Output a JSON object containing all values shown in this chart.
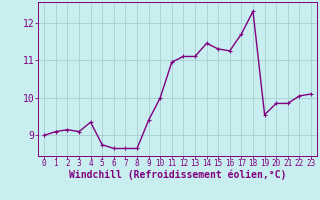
{
  "x": [
    0,
    1,
    2,
    3,
    4,
    5,
    6,
    7,
    8,
    9,
    10,
    11,
    12,
    13,
    14,
    15,
    16,
    17,
    18,
    19,
    20,
    21,
    22,
    23
  ],
  "y": [
    9.0,
    9.1,
    9.15,
    9.1,
    9.35,
    8.75,
    8.65,
    8.65,
    8.65,
    9.4,
    10.0,
    10.95,
    11.1,
    11.1,
    11.45,
    11.3,
    11.25,
    11.7,
    12.3,
    9.55,
    9.85,
    9.85,
    10.05,
    10.1
  ],
  "line_color": "#800080",
  "marker": "o",
  "marker_size": 2.0,
  "bg_color": "#c8eef0",
  "grid_color": "#a0c8cc",
  "xlabel": "Windchill (Refroidissement éolien,°C)",
  "xlabel_color": "#800080",
  "ylabel": "",
  "title": "",
  "xlim": [
    -0.5,
    23.5
  ],
  "ylim": [
    8.45,
    12.55
  ],
  "yticks": [
    9,
    10,
    11,
    12
  ],
  "xticks": [
    0,
    1,
    2,
    3,
    4,
    5,
    6,
    7,
    8,
    9,
    10,
    11,
    12,
    13,
    14,
    15,
    16,
    17,
    18,
    19,
    20,
    21,
    22,
    23
  ],
  "tick_color": "#800080",
  "tick_fontsize": 5.5,
  "xlabel_fontsize": 7.0,
  "line_width": 1.0
}
